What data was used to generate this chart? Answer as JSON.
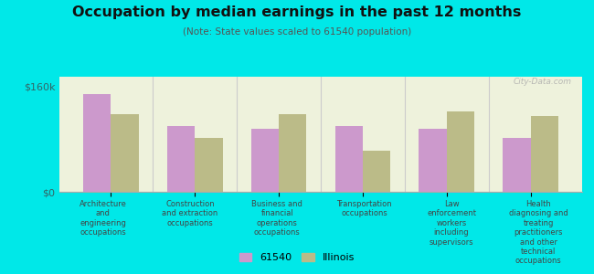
{
  "title": "Occupation by median earnings in the past 12 months",
  "subtitle": "(Note: State values scaled to 61540 population)",
  "background_color": "#00e8e8",
  "plot_bg_color": "#eef2dc",
  "categories": [
    "Architecture\nand\nengineering\noccupations",
    "Construction\nand extraction\noccupations",
    "Business and\nfinancial\noperations\noccupations",
    "Transportation\noccupations",
    "Law\nenforcement\nworkers\nincluding\nsupervisors",
    "Health\ndiagnosing and\ntreating\npractitioners\nand other\ntechnical\noccupations"
  ],
  "values_61540": [
    148000,
    100000,
    96000,
    100000,
    96000,
    82000
  ],
  "values_illinois": [
    118000,
    82000,
    118000,
    62000,
    122000,
    115000
  ],
  "color_61540": "#cc99cc",
  "color_illinois": "#bbbb88",
  "ylim": [
    0,
    175000
  ],
  "yticks": [
    0,
    160000
  ],
  "ytick_labels": [
    "$0",
    "$160k"
  ],
  "legend_61540": "61540",
  "legend_illinois": "Illinois",
  "watermark": "City-Data.com"
}
